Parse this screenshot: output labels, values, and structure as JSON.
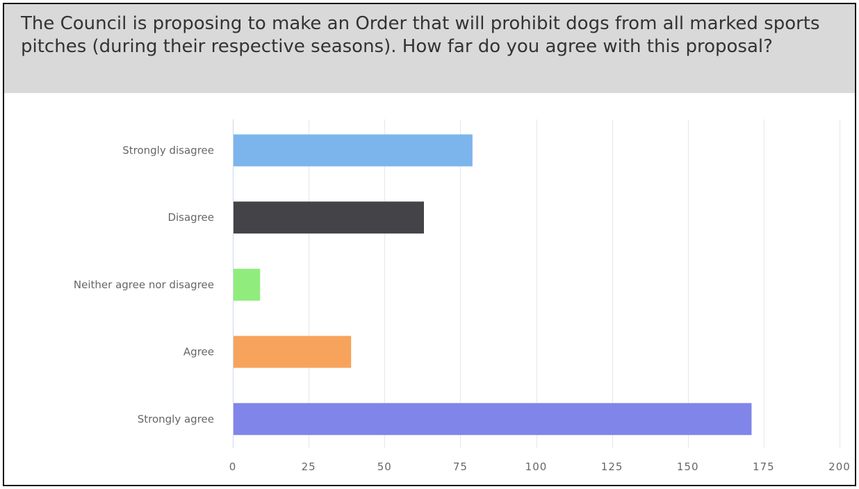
{
  "question": {
    "title": "The Council is proposing to make an Order that will prohibit dogs from all marked sports pitches (during their respective seasons). How far do you agree with this proposal?"
  },
  "chart_data": {
    "type": "bar",
    "orientation": "horizontal",
    "title": "The Council is proposing to make an Order that will prohibit dogs from all marked sports pitches (during their respective seasons). How far do you agree with this proposal?",
    "categories": [
      "Strongly disagree",
      "Disagree",
      "Neither agree nor disagree",
      "Agree",
      "Strongly agree"
    ],
    "values": [
      79,
      63,
      9,
      39,
      171
    ],
    "colors": [
      "#7cb5ec",
      "#434348",
      "#90ed7d",
      "#f7a35c",
      "#8085e9"
    ],
    "xlim": [
      0,
      200
    ],
    "ticks": [
      0,
      25,
      50,
      75,
      100,
      125,
      150,
      175,
      200
    ],
    "grid": true,
    "legend": "none"
  }
}
